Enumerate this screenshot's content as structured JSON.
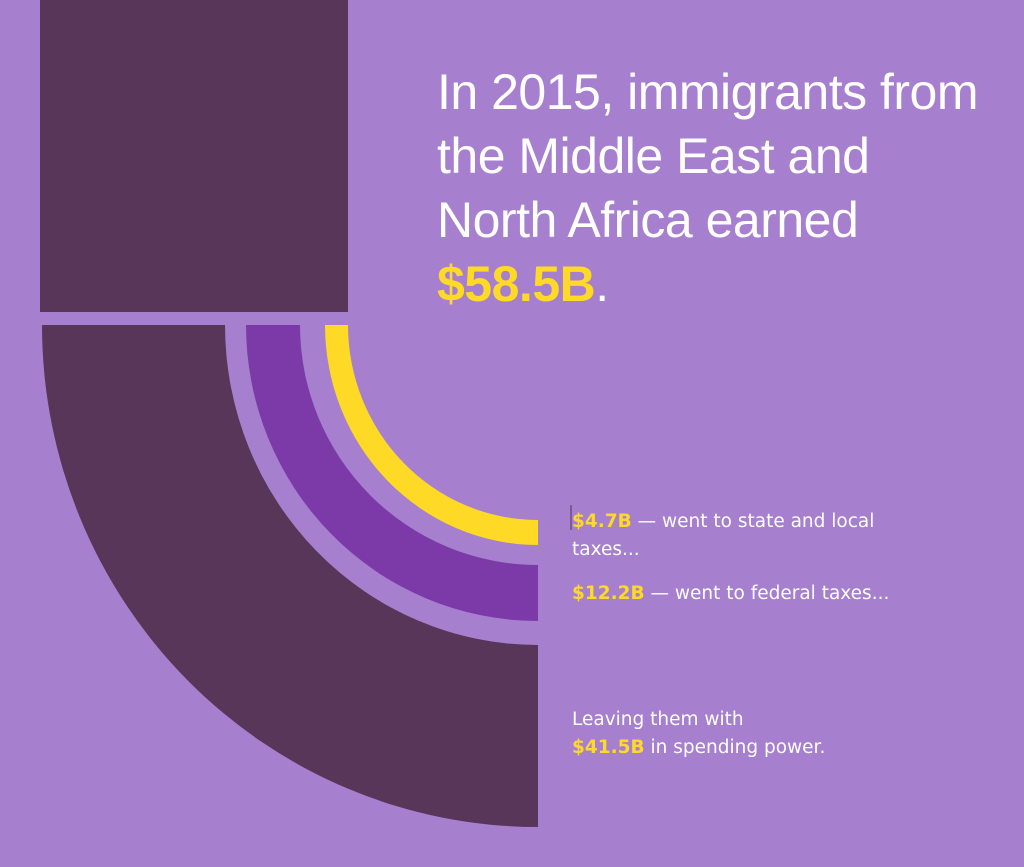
{
  "headline": {
    "text": "In 2015, immigrants from the Middle East and North Africa earned",
    "amount": "$58.5B",
    "end": "."
  },
  "notes": [
    {
      "amount": "$4.7B",
      "text": "— went to state and local taxes..."
    },
    {
      "amount": "$12.2B",
      "text": "— went to federal taxes..."
    },
    {
      "lead": "Leaving them with",
      "amount": "$41.5B",
      "text": "in spending power."
    }
  ]
}
